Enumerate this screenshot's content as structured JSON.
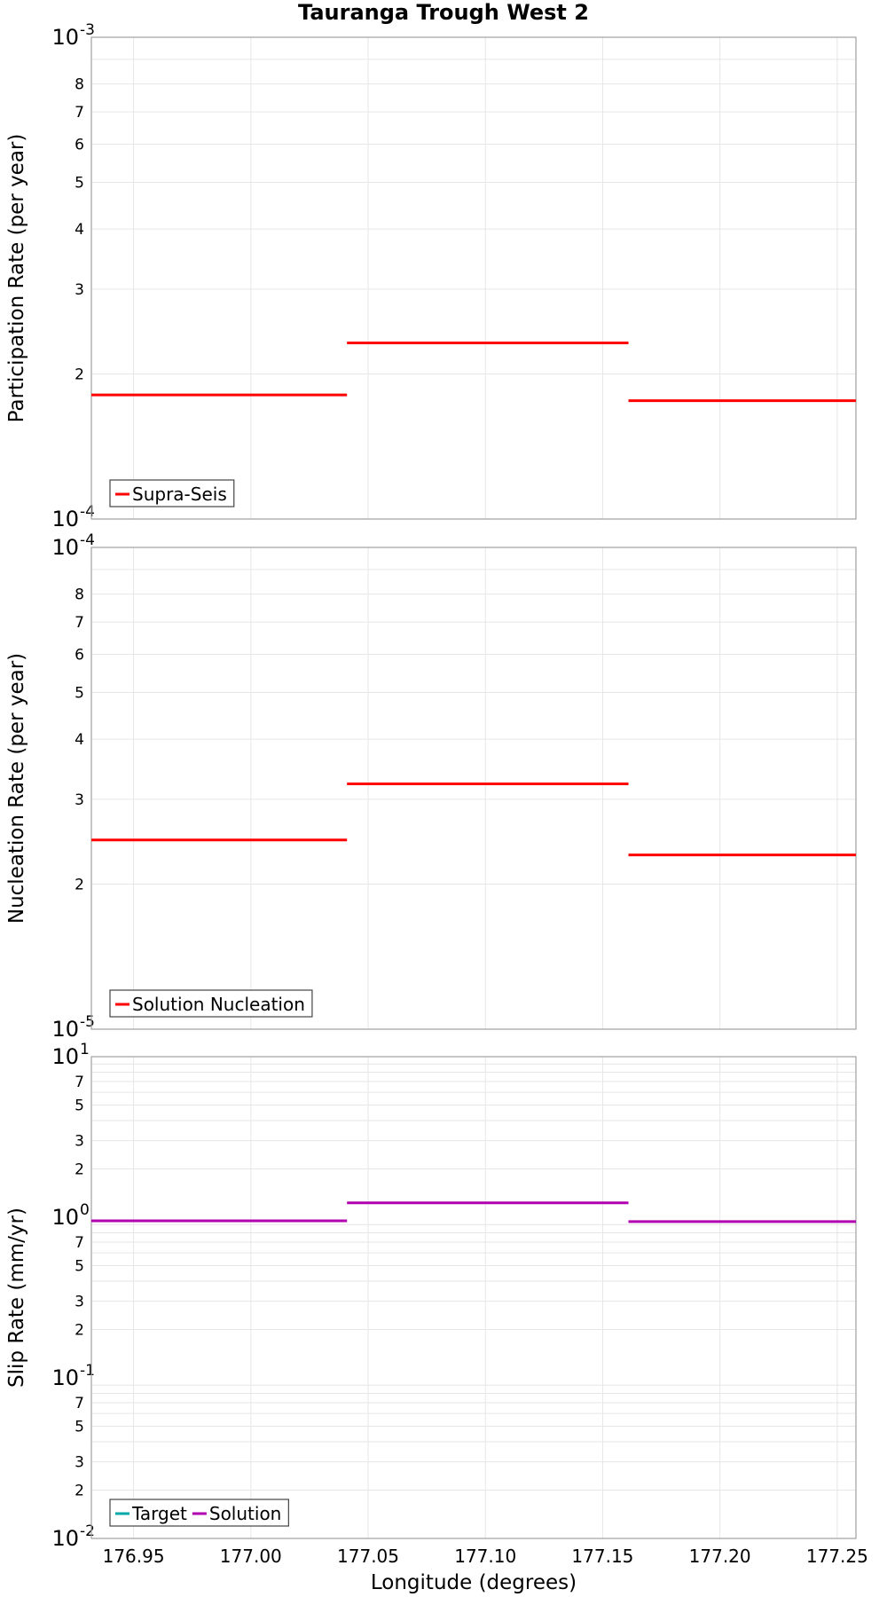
{
  "title": "Tauranga Trough West 2",
  "chart_data": [
    {
      "type": "line",
      "ylabel": "Participation Rate (per year)",
      "yscale": "log",
      "ylim": [
        0.0001,
        0.001
      ],
      "xlim": [
        176.932,
        177.258
      ],
      "grid": true,
      "legend_position": "bottom-left",
      "series": [
        {
          "name": "Supra-Seis",
          "color": "#ff0000",
          "segments": [
            {
              "x": [
                176.932,
                177.041
              ],
              "y": 0.000181
            },
            {
              "x": [
                177.041,
                177.161
              ],
              "y": 0.000232
            },
            {
              "x": [
                177.161,
                177.258
              ],
              "y": 0.000176
            }
          ]
        }
      ]
    },
    {
      "type": "line",
      "ylabel": "Nucleation Rate (per year)",
      "yscale": "log",
      "ylim": [
        1e-05,
        0.0001
      ],
      "xlim": [
        176.932,
        177.258
      ],
      "grid": true,
      "legend_position": "bottom-left",
      "series": [
        {
          "name": "Solution Nucleation",
          "color": "#ff0000",
          "segments": [
            {
              "x": [
                176.932,
                177.041
              ],
              "y": 2.47e-05
            },
            {
              "x": [
                177.041,
                177.161
              ],
              "y": 3.23e-05
            },
            {
              "x": [
                177.161,
                177.258
              ],
              "y": 2.3e-05
            }
          ]
        }
      ]
    },
    {
      "type": "line",
      "ylabel": "Slip Rate (mm/yr)",
      "xlabel": "Longitude (degrees)",
      "yscale": "log",
      "ylim": [
        0.01,
        10
      ],
      "xlim": [
        176.932,
        177.258
      ],
      "xticks": [
        "176.95",
        "177.00",
        "177.05",
        "177.10",
        "177.15",
        "177.20",
        "177.25"
      ],
      "grid": true,
      "legend_position": "bottom-left",
      "series": [
        {
          "name": "Target",
          "color": "#00a8a8",
          "segments": []
        },
        {
          "name": "Solution",
          "color": "#b000b0",
          "segments": [
            {
              "x": [
                176.932,
                177.041
              ],
              "y": 0.95
            },
            {
              "x": [
                177.041,
                177.161
              ],
              "y": 1.23
            },
            {
              "x": [
                177.161,
                177.258
              ],
              "y": 0.94
            }
          ]
        }
      ]
    }
  ],
  "ticks": {
    "panel1_major": [
      [
        "10",
        "-3"
      ],
      [
        "10",
        "-4"
      ]
    ],
    "panel2_major": [
      [
        "10",
        "-4"
      ],
      [
        "10",
        "-5"
      ]
    ],
    "panel3_major": [
      [
        "10",
        "1"
      ],
      [
        "10",
        "0"
      ],
      [
        "10",
        "-1"
      ],
      [
        "10",
        "-2"
      ]
    ]
  }
}
